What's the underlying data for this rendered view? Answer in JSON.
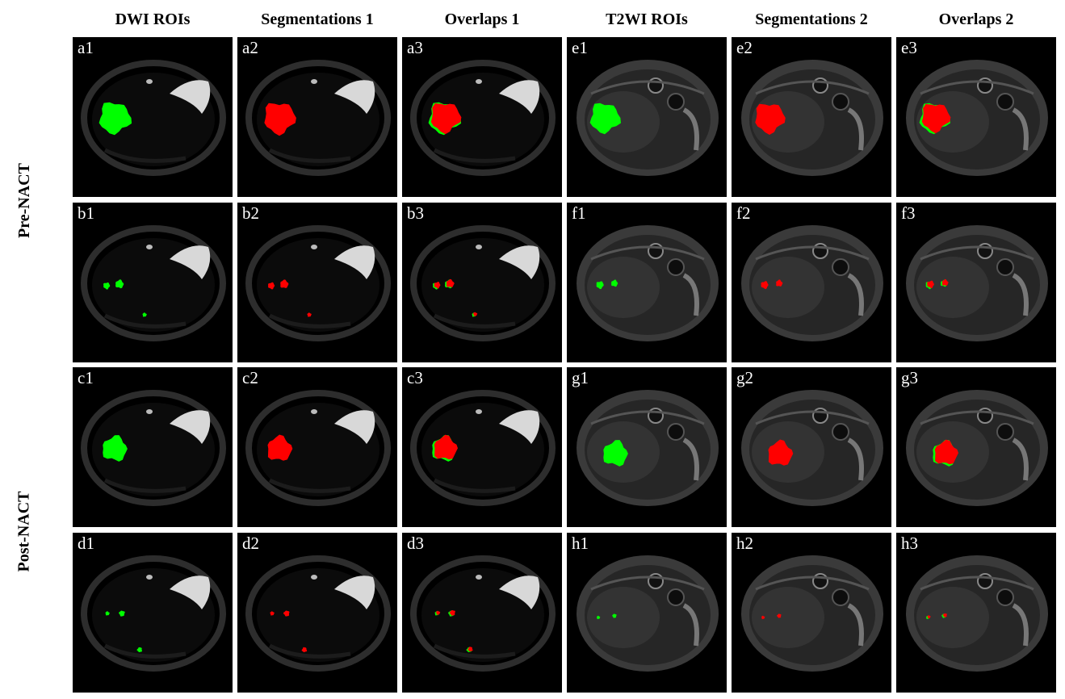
{
  "column_headers": [
    "DWI ROIs",
    "Segmentations 1",
    "Overlaps 1",
    "T2WI ROIs",
    "Segmentations 2",
    "Overlaps 2"
  ],
  "row_groups": [
    "Pre-NACT",
    "Post-NACT"
  ],
  "panels": [
    [
      "a1",
      "a2",
      "a3",
      "e1",
      "e2",
      "e3"
    ],
    [
      "b1",
      "b2",
      "b3",
      "f1",
      "f2",
      "f3"
    ],
    [
      "c1",
      "c2",
      "c3",
      "g1",
      "g2",
      "g3"
    ],
    [
      "d1",
      "d2",
      "d3",
      "h1",
      "h2",
      "h3"
    ]
  ],
  "colors": {
    "roi": "#00ff00",
    "segmentation": "#ff0000",
    "background": "#000000"
  }
}
